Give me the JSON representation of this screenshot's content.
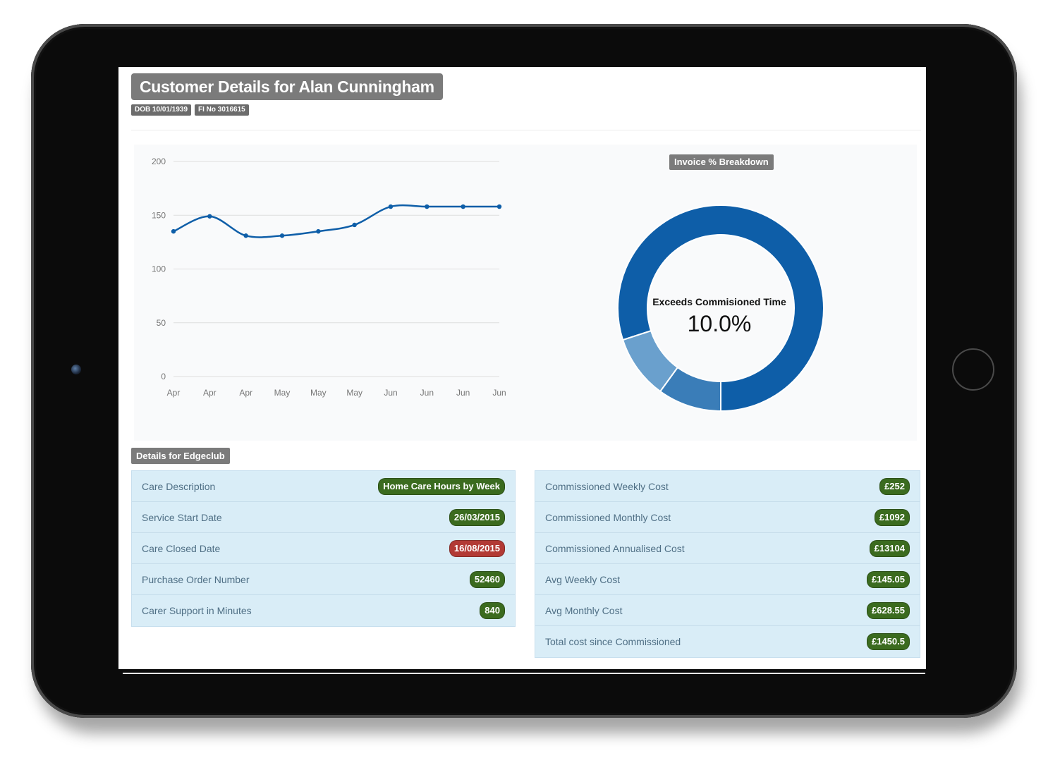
{
  "header": {
    "title": "Customer Details for Alan Cunningham",
    "dob": "DOB 10/01/1939",
    "fi_no": "FI No 3016615"
  },
  "colors": {
    "primary_blue": "#0e5ea8",
    "mid_blue": "#3a7db8",
    "light_blue": "#6aa0cd",
    "badge_green": "#3b6b1f",
    "badge_red": "#b23a35",
    "label_grey": "#7b7b7b"
  },
  "chart_data": [
    {
      "type": "line",
      "categories": [
        "Apr",
        "Apr",
        "Apr",
        "May",
        "May",
        "May",
        "Jun",
        "Jun",
        "Jun",
        "Jun"
      ],
      "series": [
        {
          "values": [
            135,
            149,
            131,
            131,
            135,
            141,
            158,
            158,
            158,
            158
          ]
        }
      ],
      "ylim": [
        0,
        200
      ],
      "yticks": [
        0,
        50,
        100,
        150,
        200
      ],
      "grid": true
    },
    {
      "type": "pie",
      "title": "Invoice % Breakdown",
      "center_label": "Exceeds Commisioned Time",
      "center_value": "10.0%",
      "slices": [
        {
          "value": 80
        },
        {
          "value": 10
        },
        {
          "value": 10
        }
      ]
    }
  ],
  "details": {
    "label": "Details for Edgeclub",
    "left_rows": [
      {
        "label": "Care Description",
        "value": "Home Care Hours by Week",
        "status": "green"
      },
      {
        "label": "Service Start Date",
        "value": "26/03/2015",
        "status": "green"
      },
      {
        "label": "Care Closed Date",
        "value": "16/08/2015",
        "status": "red"
      },
      {
        "label": "Purchase Order Number",
        "value": "52460",
        "status": "green"
      },
      {
        "label": "Carer Support in Minutes",
        "value": "840",
        "status": "green"
      }
    ],
    "right_rows": [
      {
        "label": "Commissioned Weekly Cost",
        "value": "£252",
        "status": "green"
      },
      {
        "label": "Commissioned Monthly Cost",
        "value": "£1092",
        "status": "green"
      },
      {
        "label": "Commissioned Annualised Cost",
        "value": "£13104",
        "status": "green"
      },
      {
        "label": "Avg Weekly Cost",
        "value": "£145.05",
        "status": "green"
      },
      {
        "label": "Avg Monthly Cost",
        "value": "£628.55",
        "status": "green"
      },
      {
        "label": "Total cost since Commissioned",
        "value": "£1450.5",
        "status": "green"
      }
    ]
  }
}
